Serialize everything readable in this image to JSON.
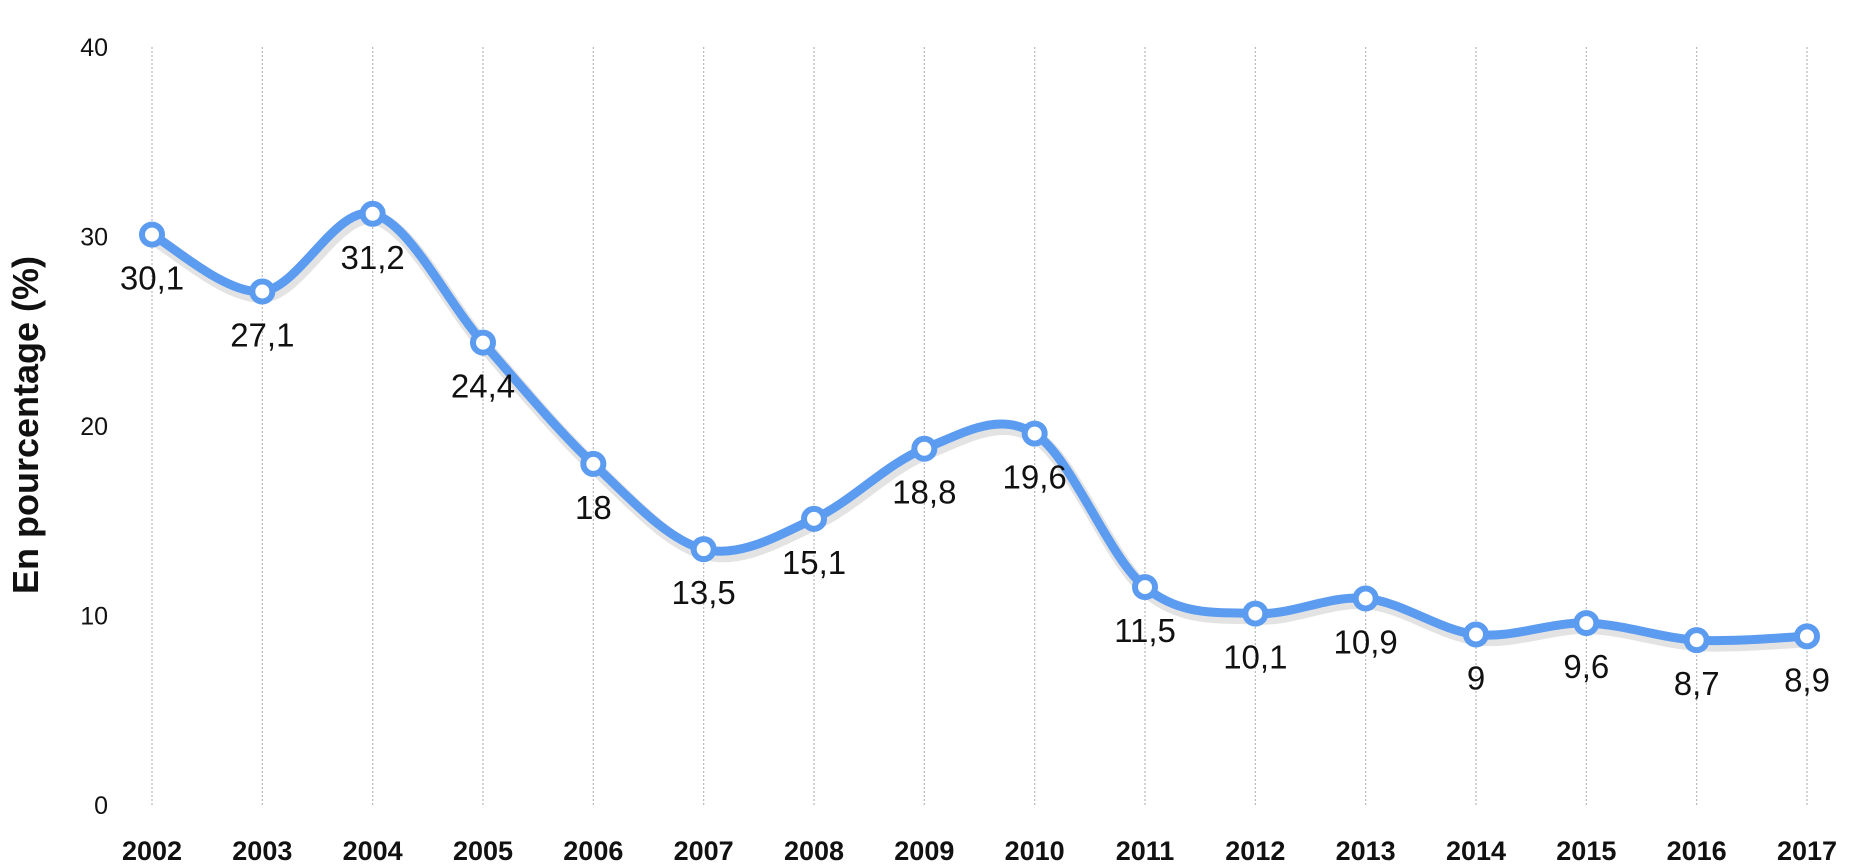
{
  "chart_data": {
    "type": "line",
    "title": "",
    "xlabel": "",
    "ylabel": "En pourcentage (%)",
    "ylim": [
      0,
      40
    ],
    "yticks": [
      "0",
      "10",
      "20",
      "30",
      "40"
    ],
    "ytick_values": [
      0,
      10,
      20,
      30,
      40
    ],
    "grid": "vertical dashed lines at each category",
    "legend": "none",
    "smooth": true,
    "categories": [
      "2002",
      "2003",
      "2004",
      "2005",
      "2006",
      "2007",
      "2008",
      "2009",
      "2010",
      "2011",
      "2012",
      "2013",
      "2014",
      "2015",
      "2016",
      "2017"
    ],
    "series": [
      {
        "color": "#5B9BF0",
        "values": [
          30.1,
          27.1,
          31.2,
          24.4,
          18,
          13.5,
          15.1,
          18.8,
          19.6,
          11.5,
          10.1,
          10.9,
          9,
          9.6,
          8.7,
          8.9
        ],
        "data_labels": [
          "30,1",
          "27,1",
          "31,2",
          "24,4",
          "18",
          "13,5",
          "15,1",
          "18,8",
          "19,6",
          "11,5",
          "10,1",
          "10,9",
          "9",
          "9,6",
          "8,7",
          "8,9"
        ]
      }
    ]
  }
}
